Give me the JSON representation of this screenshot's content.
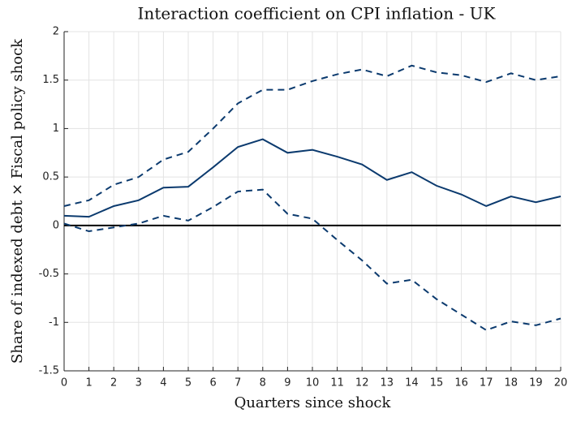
{
  "chart_data": {
    "type": "line",
    "title": "Interaction coefficient on CPI inflation - UK",
    "x_label": "Quarters since shock",
    "y_label": "Share of indexed debt × Fiscal policy shock",
    "x": [
      0,
      1,
      2,
      3,
      4,
      5,
      6,
      7,
      8,
      9,
      10,
      11,
      12,
      13,
      14,
      15,
      16,
      17,
      18,
      19,
      20
    ],
    "series": [
      {
        "color": "#0b3a6e",
        "dashed": false,
        "values": [
          0.1,
          0.09,
          0.2,
          0.26,
          0.39,
          0.4,
          0.6,
          0.81,
          0.89,
          0.75,
          0.78,
          0.71,
          0.63,
          0.47,
          0.55,
          0.41,
          0.32,
          0.2,
          0.3,
          0.24,
          0.3
        ]
      },
      {
        "color": "#0b3a6e",
        "dashed": true,
        "values": [
          0.2,
          0.26,
          0.42,
          0.5,
          0.68,
          0.76,
          1.0,
          1.26,
          1.4,
          1.4,
          1.49,
          1.56,
          1.61,
          1.54,
          1.65,
          1.58,
          1.55,
          1.48,
          1.57,
          1.5,
          1.54
        ]
      },
      {
        "color": "#0b3a6e",
        "dashed": true,
        "values": [
          0.02,
          -0.06,
          -0.02,
          0.02,
          0.1,
          0.05,
          0.19,
          0.35,
          0.37,
          0.12,
          0.07,
          -0.15,
          -0.36,
          -0.6,
          -0.56,
          -0.76,
          -0.92,
          -1.08,
          -0.99,
          -1.03,
          -0.96
        ]
      }
    ],
    "reference_line": 0,
    "xlim": [
      0,
      20
    ],
    "xticks": [
      0,
      1,
      2,
      3,
      4,
      5,
      6,
      7,
      8,
      9,
      10,
      11,
      12,
      13,
      14,
      15,
      16,
      17,
      18,
      19,
      20
    ],
    "ylim": [
      -1.5,
      2
    ],
    "yticks": [
      -1.5,
      -1,
      -0.5,
      0,
      0.5,
      1,
      1.5,
      2
    ],
    "grid": true
  }
}
